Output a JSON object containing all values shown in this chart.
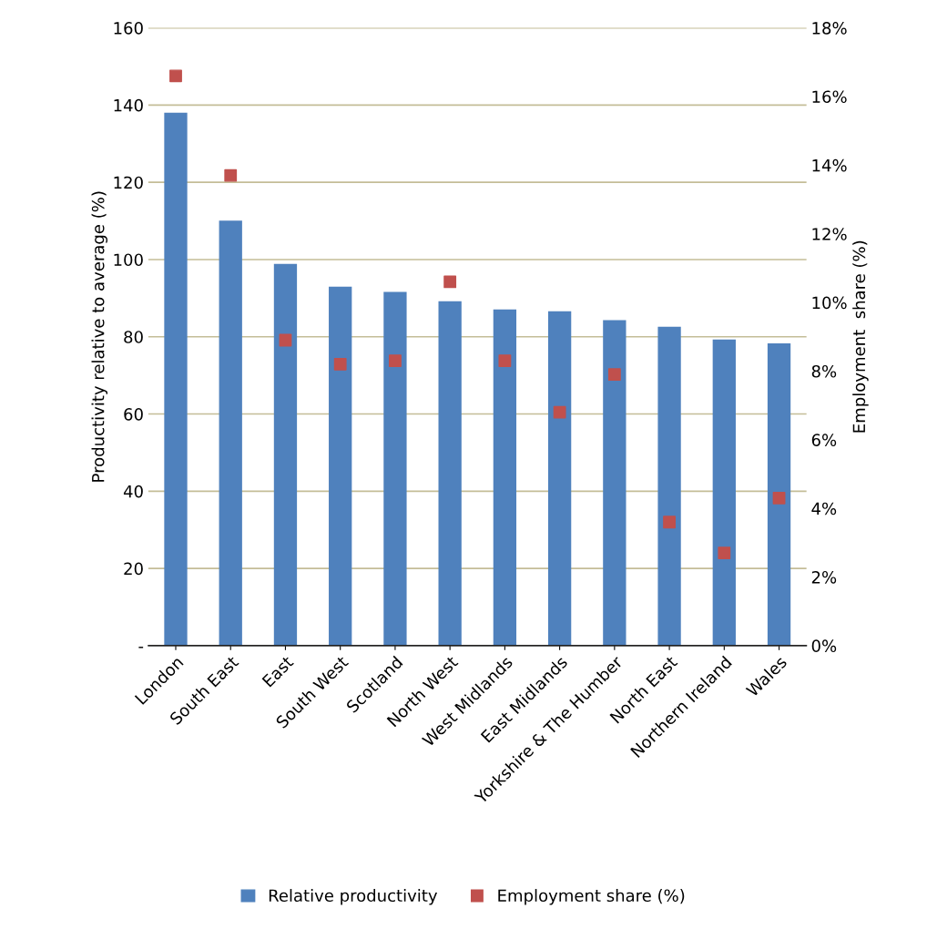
{
  "chart_data": {
    "type": "bar",
    "ylabel": "Productivity relative to average (%)",
    "y2label": "Employment  share (%)",
    "categories": [
      "London",
      "South East",
      "East",
      "South West",
      "Scotland",
      "North West",
      "West Midlands",
      "East Midlands",
      "Yorkshire & The Humber",
      "North East",
      "Northern Ireland",
      "Wales"
    ],
    "series": [
      {
        "name": "Relative productivity",
        "color": "#4f81bd",
        "values": [
          138.0,
          110.1,
          98.9,
          93.0,
          91.6,
          89.2,
          87.1,
          86.6,
          84.3,
          82.6,
          79.3,
          78.3
        ]
      },
      {
        "name": "Employment share (%)",
        "type": "scatter",
        "axis": "y2",
        "marker": "square",
        "color": "#c0504d",
        "values": [
          16.6,
          13.7,
          8.9,
          8.2,
          8.3,
          10.6,
          8.3,
          6.8,
          7.9,
          3.6,
          2.7,
          4.3
        ]
      }
    ],
    "ylim": [
      0,
      160
    ],
    "yticks": [
      {
        "value": 0,
        "label": "-"
      },
      20,
      40,
      60,
      80,
      100,
      120,
      140,
      160
    ],
    "y2lim": [
      0,
      18
    ],
    "y2ticks": [
      {
        "value": 0,
        "label": "0%"
      },
      {
        "value": 2,
        "label": "2%"
      },
      {
        "value": 4,
        "label": "4%"
      },
      {
        "value": 6,
        "label": "6%"
      },
      {
        "value": 8,
        "label": "8%"
      },
      {
        "value": 10,
        "label": "10%"
      },
      {
        "value": 12,
        "label": "12%"
      },
      {
        "value": 14,
        "label": "14%"
      },
      {
        "value": 16,
        "label": "16%"
      },
      {
        "value": 18,
        "label": "18%"
      }
    ],
    "grid": "y",
    "legend": "bottom"
  }
}
